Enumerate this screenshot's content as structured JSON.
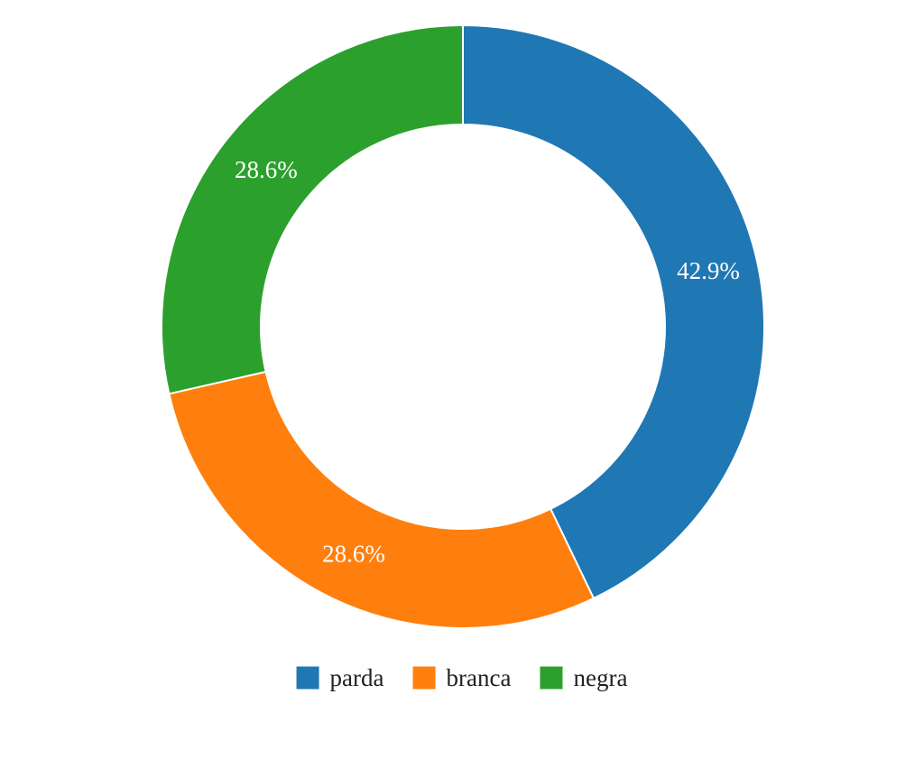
{
  "chart_data": {
    "type": "pie",
    "donut": true,
    "title": "",
    "categories": [
      "parda",
      "branca",
      "negra"
    ],
    "values": [
      42.9,
      28.6,
      28.6
    ],
    "labels": [
      "42.9%",
      "28.6%",
      "28.6%"
    ],
    "colors": [
      "#1f77b4",
      "#ff7f0e",
      "#2ca02c"
    ],
    "legend": {
      "position": "bottom",
      "entries": [
        "parda",
        "branca",
        "negra"
      ]
    }
  }
}
